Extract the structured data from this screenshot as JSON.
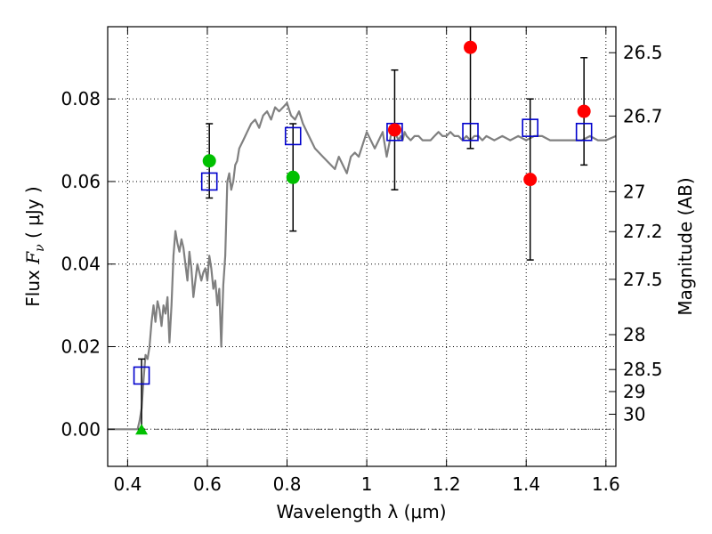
{
  "chart_data": {
    "type": "scatter",
    "xlabel": "Wavelength  λ (μm)",
    "ylabel_prefix": "Flux  ",
    "ylabel_symbol": "F",
    "ylabel_sub": "ν",
    "ylabel_units": "  ( μJy )",
    "y2label": "Magnitude (AB)",
    "xlim": [
      0.35,
      1.625
    ],
    "ylim": [
      -0.009,
      0.0975
    ],
    "grid": true,
    "zero_line": true,
    "x_ticks": [
      0.4,
      0.6,
      0.8,
      1.0,
      1.2,
      1.4,
      1.6
    ],
    "x_tick_labels": [
      "0.4",
      "0.6",
      "0.8",
      "1",
      "1.2",
      "1.4",
      "1.6"
    ],
    "y_ticks": [
      0.0,
      0.02,
      0.04,
      0.06,
      0.08
    ],
    "y_tick_labels": [
      "0.00",
      "0.02",
      "0.04",
      "0.06",
      "0.08"
    ],
    "mag_ticks": [
      {
        "mag": 26.5,
        "label": "26.5"
      },
      {
        "mag": 26.7,
        "label": "26.7"
      },
      {
        "mag": 27.0,
        "label": "27"
      },
      {
        "mag": 27.2,
        "label": "27.2"
      },
      {
        "mag": 27.5,
        "label": "27.5"
      },
      {
        "mag": 28.0,
        "label": "28"
      },
      {
        "mag": 28.5,
        "label": "28.5"
      },
      {
        "mag": 29.0,
        "label": "29"
      },
      {
        "mag": 30.0,
        "label": "30"
      }
    ],
    "series": [
      {
        "name": "model-spectrum",
        "kind": "line",
        "color": "#808080",
        "x": [
          0.35,
          0.39,
          0.395,
          0.4,
          0.405,
          0.41,
          0.415,
          0.42,
          0.425,
          0.43,
          0.435,
          0.44,
          0.445,
          0.45,
          0.455,
          0.46,
          0.465,
          0.47,
          0.475,
          0.48,
          0.485,
          0.49,
          0.495,
          0.5,
          0.505,
          0.51,
          0.515,
          0.52,
          0.525,
          0.53,
          0.535,
          0.54,
          0.545,
          0.55,
          0.555,
          0.56,
          0.565,
          0.57,
          0.575,
          0.58,
          0.585,
          0.59,
          0.595,
          0.6,
          0.605,
          0.61,
          0.615,
          0.62,
          0.625,
          0.63,
          0.635,
          0.64,
          0.645,
          0.65,
          0.655,
          0.66,
          0.665,
          0.67,
          0.675,
          0.68,
          0.69,
          0.7,
          0.71,
          0.72,
          0.73,
          0.74,
          0.75,
          0.76,
          0.77,
          0.78,
          0.79,
          0.8,
          0.81,
          0.82,
          0.83,
          0.84,
          0.85,
          0.86,
          0.87,
          0.88,
          0.89,
          0.9,
          0.91,
          0.92,
          0.93,
          0.94,
          0.95,
          0.96,
          0.97,
          0.98,
          0.99,
          1.0,
          1.01,
          1.02,
          1.03,
          1.04,
          1.05,
          1.06,
          1.07,
          1.08,
          1.085,
          1.09,
          1.095,
          1.1,
          1.11,
          1.12,
          1.13,
          1.14,
          1.15,
          1.16,
          1.17,
          1.18,
          1.19,
          1.2,
          1.21,
          1.22,
          1.23,
          1.24,
          1.25,
          1.26,
          1.27,
          1.28,
          1.29,
          1.3,
          1.32,
          1.34,
          1.36,
          1.38,
          1.4,
          1.42,
          1.44,
          1.46,
          1.48,
          1.5,
          1.52,
          1.54,
          1.56,
          1.58,
          1.6,
          1.625
        ],
        "y": [
          0.0,
          0.0,
          0.0,
          0.0,
          0.0,
          0.0,
          0.0,
          0.0,
          0.0,
          0.002,
          0.005,
          0.012,
          0.018,
          0.017,
          0.02,
          0.026,
          0.03,
          0.026,
          0.031,
          0.029,
          0.025,
          0.03,
          0.028,
          0.032,
          0.021,
          0.03,
          0.042,
          0.048,
          0.045,
          0.043,
          0.046,
          0.044,
          0.04,
          0.036,
          0.043,
          0.039,
          0.032,
          0.036,
          0.04,
          0.038,
          0.036,
          0.038,
          0.039,
          0.036,
          0.042,
          0.039,
          0.034,
          0.036,
          0.03,
          0.034,
          0.02,
          0.035,
          0.042,
          0.06,
          0.062,
          0.058,
          0.06,
          0.064,
          0.065,
          0.068,
          0.07,
          0.072,
          0.074,
          0.075,
          0.073,
          0.076,
          0.077,
          0.075,
          0.078,
          0.077,
          0.078,
          0.079,
          0.076,
          0.075,
          0.077,
          0.074,
          0.072,
          0.07,
          0.068,
          0.067,
          0.066,
          0.065,
          0.064,
          0.063,
          0.066,
          0.064,
          0.062,
          0.066,
          0.067,
          0.066,
          0.069,
          0.072,
          0.07,
          0.068,
          0.07,
          0.072,
          0.066,
          0.071,
          0.072,
          0.07,
          0.071,
          0.07,
          0.072,
          0.071,
          0.07,
          0.071,
          0.071,
          0.07,
          0.07,
          0.07,
          0.071,
          0.072,
          0.071,
          0.071,
          0.072,
          0.071,
          0.071,
          0.07,
          0.071,
          0.07,
          0.071,
          0.071,
          0.07,
          0.071,
          0.07,
          0.071,
          0.07,
          0.071,
          0.07,
          0.071,
          0.071,
          0.07,
          0.07,
          0.07,
          0.07,
          0.07,
          0.071,
          0.07,
          0.07,
          0.071
        ]
      },
      {
        "name": "model-photometry",
        "kind": "open-square",
        "color": "#0000cc",
        "x": [
          0.435,
          0.605,
          0.815,
          1.07,
          1.26,
          1.41,
          1.545
        ],
        "y": [
          0.013,
          0.06,
          0.071,
          0.072,
          0.072,
          0.073,
          0.072
        ]
      },
      {
        "name": "hst-detections",
        "kind": "filled-circle",
        "color": "#ff0000",
        "x": [
          1.07,
          1.26,
          1.41,
          1.545
        ],
        "y": [
          0.0725,
          0.0925,
          0.0605,
          0.077
        ]
      },
      {
        "name": "optical-detections",
        "kind": "filled-circle",
        "color": "#00c000",
        "x": [
          0.605,
          0.815
        ],
        "y": [
          0.065,
          0.061
        ]
      },
      {
        "name": "upper-limit",
        "kind": "filled-triangle",
        "color": "#00c000",
        "x": [
          0.435
        ],
        "y": [
          0.0
        ]
      }
    ],
    "error_bars": [
      {
        "x": 0.435,
        "low": 0.0,
        "high": 0.017
      },
      {
        "x": 0.605,
        "low": 0.056,
        "high": 0.074
      },
      {
        "x": 0.815,
        "low": 0.048,
        "high": 0.074
      },
      {
        "x": 1.07,
        "low": 0.058,
        "high": 0.087
      },
      {
        "x": 1.26,
        "low": 0.068,
        "high": 0.098
      },
      {
        "x": 1.41,
        "low": 0.041,
        "high": 0.08
      },
      {
        "x": 1.545,
        "low": 0.064,
        "high": 0.09
      }
    ],
    "colors": {
      "line": "#808080",
      "square": "#0000cc",
      "red": "#ff0000",
      "green": "#00c000",
      "errorbar": "#000000",
      "grid": "#000000",
      "zero_line": "#404040"
    }
  }
}
